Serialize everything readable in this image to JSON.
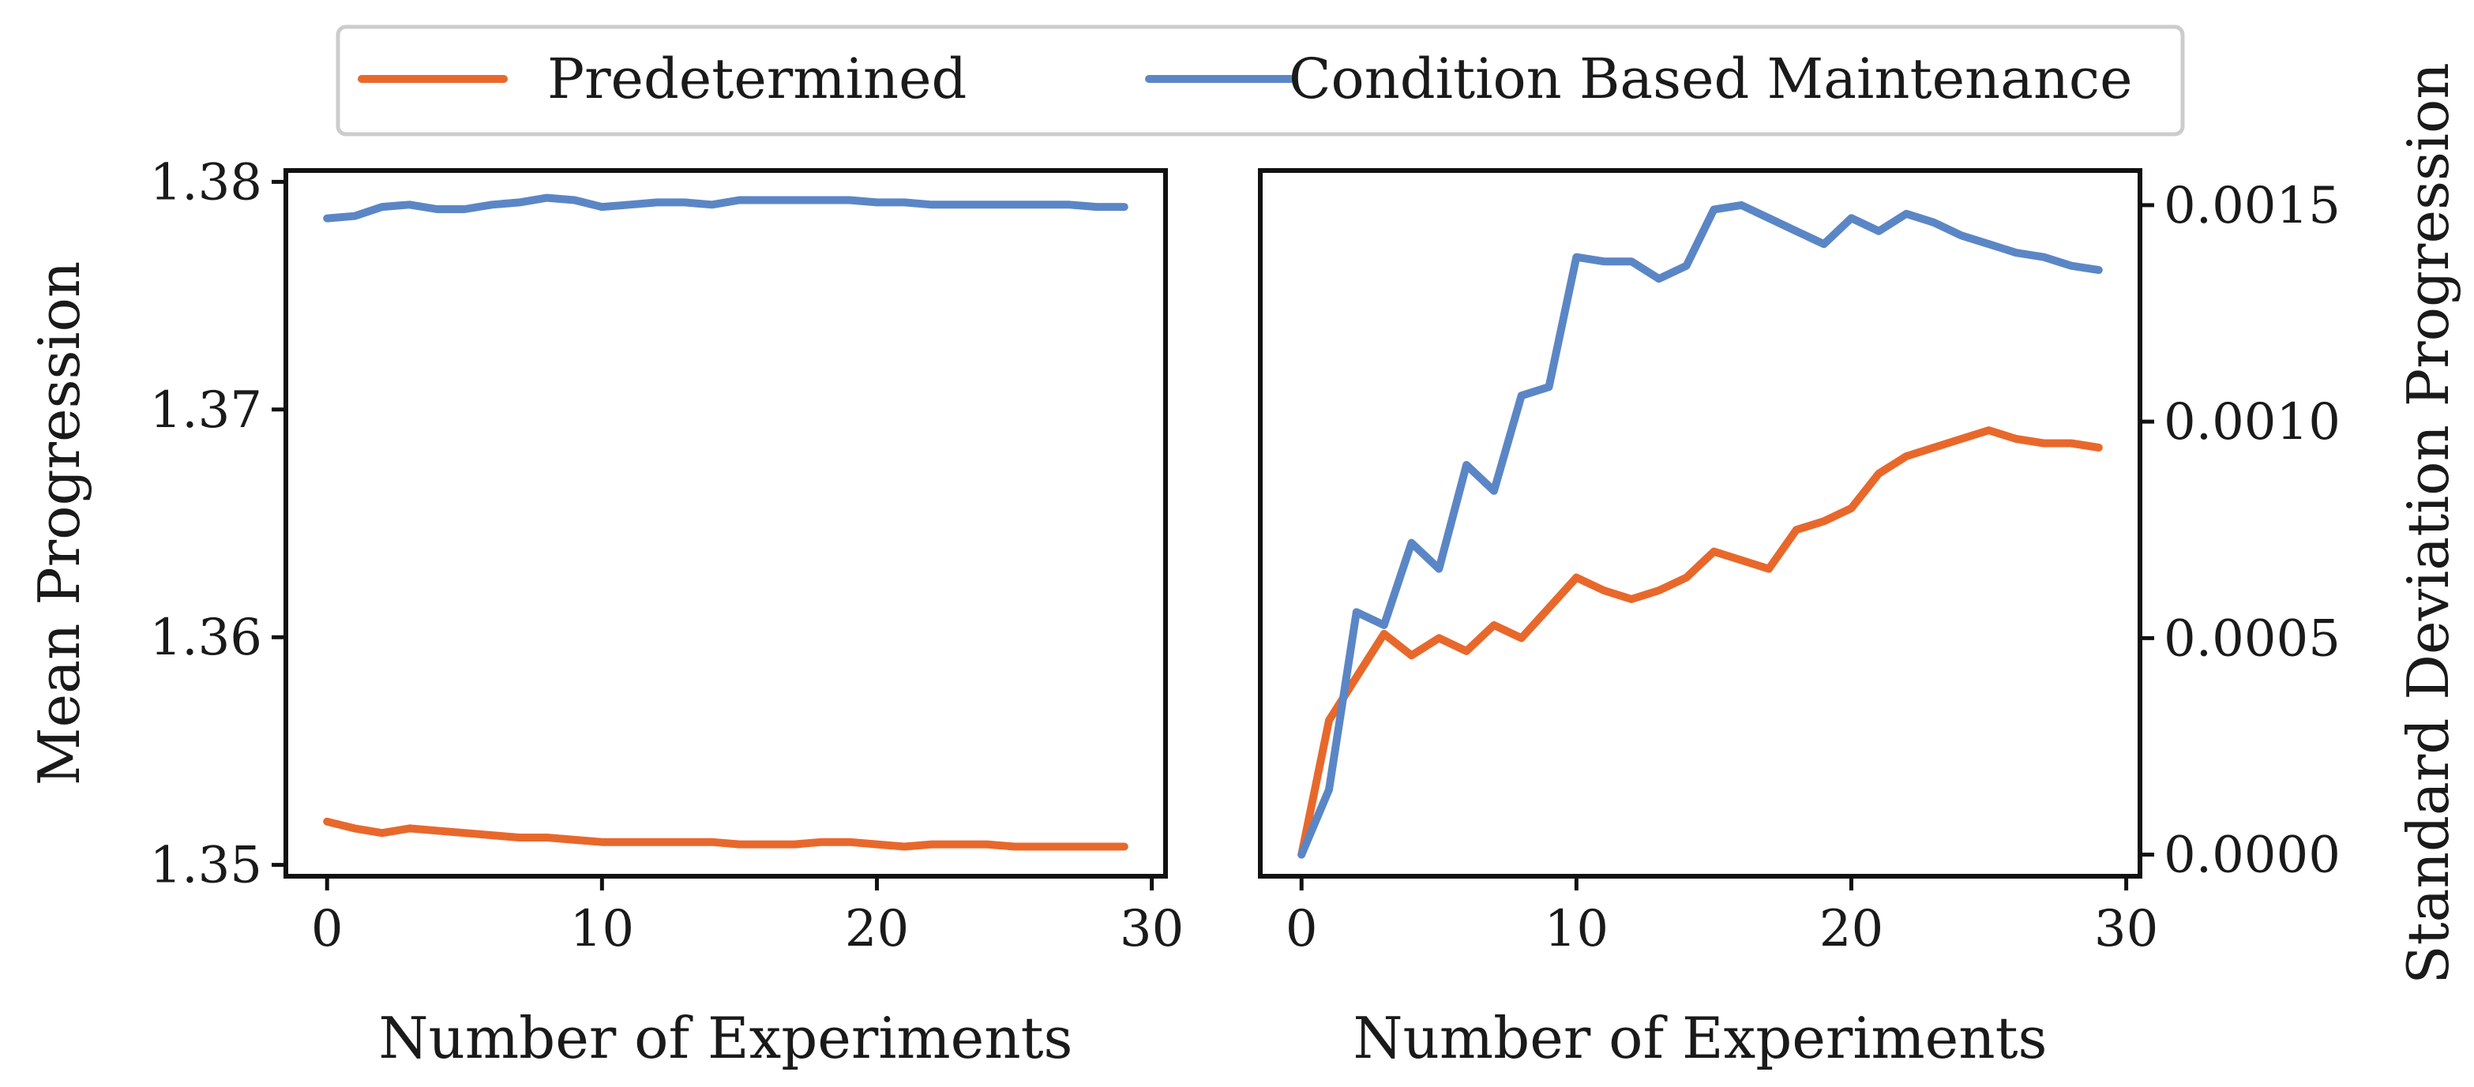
{
  "legend": {
    "entries": [
      {
        "label": "Predetermined",
        "color": "#e8682c"
      },
      {
        "label": "Condition Based Maintenance",
        "color": "#5b86c6"
      }
    ]
  },
  "chart_data": [
    {
      "type": "line",
      "title": "",
      "xlabel": "Number of Experiments",
      "ylabel": "Mean Progression",
      "xlim": [
        -1.5,
        30.5
      ],
      "ylim": [
        1.3495,
        1.3805
      ],
      "xticks": [
        0,
        10,
        20,
        30
      ],
      "xtick_labels": [
        "0",
        "10",
        "20",
        "30"
      ],
      "yticks": [
        1.35,
        1.36,
        1.37,
        1.38
      ],
      "ytick_labels": [
        "1.35",
        "1.36",
        "1.37",
        "1.38"
      ],
      "yaxis_side": "left",
      "grid": false,
      "x": [
        0,
        1,
        2,
        3,
        4,
        5,
        6,
        7,
        8,
        9,
        10,
        11,
        12,
        13,
        14,
        15,
        16,
        17,
        18,
        19,
        20,
        21,
        22,
        23,
        24,
        25,
        26,
        27,
        28,
        29
      ],
      "series": [
        {
          "name": "Predetermined",
          "color": "#e8682c",
          "values": [
            1.3519,
            1.3516,
            1.3514,
            1.3516,
            1.3515,
            1.3514,
            1.3513,
            1.3512,
            1.3512,
            1.3511,
            1.351,
            1.351,
            1.351,
            1.351,
            1.351,
            1.3509,
            1.3509,
            1.3509,
            1.351,
            1.351,
            1.3509,
            1.3508,
            1.3509,
            1.3509,
            1.3509,
            1.3508,
            1.3508,
            1.3508,
            1.3508,
            1.3508
          ]
        },
        {
          "name": "Condition Based Maintenance",
          "color": "#5b86c6",
          "values": [
            1.3784,
            1.3785,
            1.3789,
            1.379,
            1.3788,
            1.3788,
            1.379,
            1.3791,
            1.3793,
            1.3792,
            1.3789,
            1.379,
            1.3791,
            1.3791,
            1.379,
            1.3792,
            1.3792,
            1.3792,
            1.3792,
            1.3792,
            1.3791,
            1.3791,
            1.379,
            1.379,
            1.379,
            1.379,
            1.379,
            1.379,
            1.3789,
            1.3789
          ]
        }
      ]
    },
    {
      "type": "line",
      "title": "",
      "xlabel": "Number of Experiments",
      "ylabel": "Standard Deviation Progression",
      "xlim": [
        -1.5,
        30.5
      ],
      "ylim": [
        -5e-05,
        0.00158
      ],
      "xticks": [
        0,
        10,
        20,
        30
      ],
      "xtick_labels": [
        "0",
        "10",
        "20",
        "30"
      ],
      "yticks": [
        0.0,
        0.0005,
        0.001,
        0.0015
      ],
      "ytick_labels": [
        "0.0000",
        "0.0005",
        "0.0010",
        "0.0015"
      ],
      "yaxis_side": "right",
      "grid": false,
      "x": [
        0,
        1,
        2,
        3,
        4,
        5,
        6,
        7,
        8,
        9,
        10,
        11,
        12,
        13,
        14,
        15,
        16,
        17,
        18,
        19,
        20,
        21,
        22,
        23,
        24,
        25,
        26,
        27,
        28,
        29
      ],
      "series": [
        {
          "name": "Predetermined",
          "color": "#e8682c",
          "values": [
            0.0,
            0.00031,
            0.00041,
            0.00051,
            0.00046,
            0.0005,
            0.00047,
            0.00053,
            0.0005,
            0.00057,
            0.00064,
            0.00061,
            0.00059,
            0.00061,
            0.00064,
            0.0007,
            0.00068,
            0.00066,
            0.00075,
            0.00077,
            0.0008,
            0.00088,
            0.00092,
            0.00094,
            0.00096,
            0.00098,
            0.00096,
            0.00095,
            0.00095,
            0.00094
          ]
        },
        {
          "name": "Condition Based Maintenance",
          "color": "#5b86c6",
          "values": [
            0.0,
            0.00015,
            0.00056,
            0.00053,
            0.00072,
            0.00066,
            0.0009,
            0.00084,
            0.00106,
            0.00108,
            0.00138,
            0.00137,
            0.00137,
            0.00133,
            0.00136,
            0.00149,
            0.0015,
            0.00147,
            0.00144,
            0.00141,
            0.00147,
            0.00144,
            0.00148,
            0.00146,
            0.00143,
            0.00141,
            0.00139,
            0.00138,
            0.00136,
            0.00135
          ]
        }
      ]
    }
  ]
}
